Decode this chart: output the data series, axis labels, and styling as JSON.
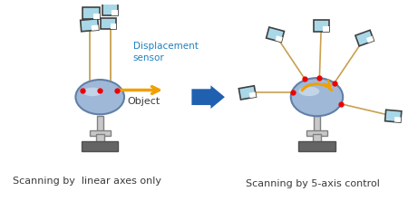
{
  "bg_color": "#ffffff",
  "text_color": "#3a3a3a",
  "sensor_fill": "#a8d8e8",
  "sensor_edge": "#404040",
  "object_fill": "#a0b8d8",
  "object_edge": "#6080a8",
  "stand_light": "#c8c8c8",
  "stand_dark": "#646464",
  "line_color": "#c8a050",
  "red_dot": "#ee0000",
  "arrow_yellow": "#f0a000",
  "arrow_blue": "#2060b0",
  "figsize": [
    4.5,
    2.22
  ],
  "dpi": 100,
  "label_left": "Scanning by  linear axes only",
  "label_right": "Scanning by 5-axis control",
  "label_sensor": "Displacement\nsensor",
  "label_object": "Object"
}
